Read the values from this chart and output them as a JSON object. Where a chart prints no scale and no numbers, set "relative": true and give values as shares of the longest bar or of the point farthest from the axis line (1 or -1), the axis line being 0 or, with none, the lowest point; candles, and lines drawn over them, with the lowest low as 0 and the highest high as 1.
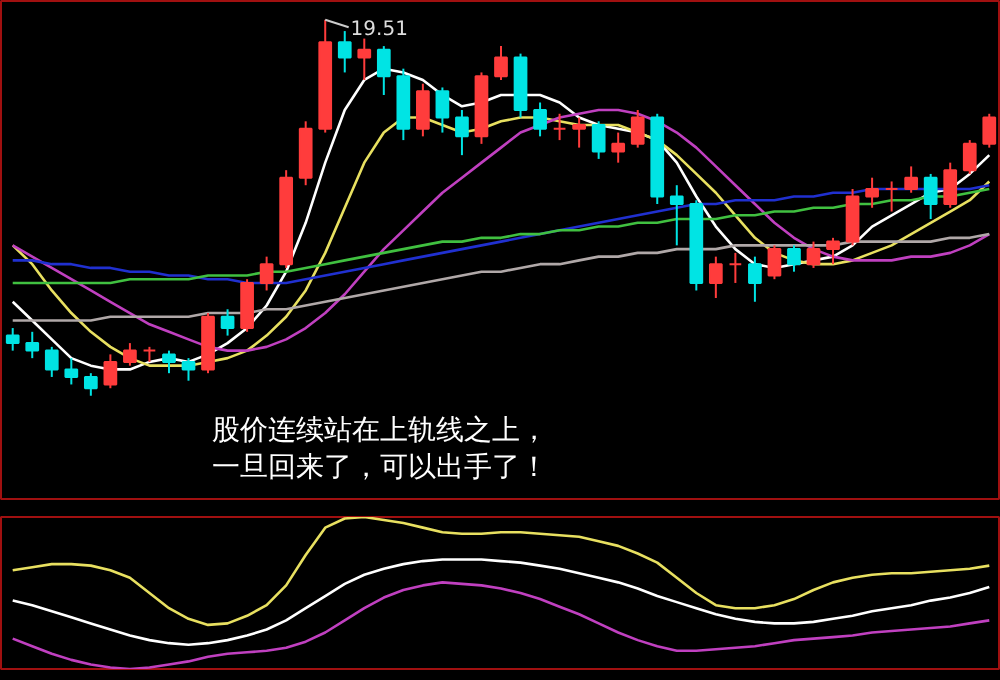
{
  "chart_data": [
    {
      "type": "candlestick",
      "relative": true,
      "categories": [
        null,
        null,
        null,
        null,
        null,
        null,
        null,
        null,
        null,
        null,
        null,
        null,
        null,
        null,
        null,
        null,
        null,
        null,
        null,
        null,
        null,
        null,
        null,
        null,
        null,
        null,
        null,
        null,
        null,
        null,
        null,
        null,
        null,
        null,
        null,
        null,
        null,
        null,
        null,
        null,
        null,
        null,
        null,
        null,
        null,
        null,
        null,
        null,
        null,
        null,
        null
      ],
      "ohlc": [
        [
          0.16,
          0.18,
          0.12,
          0.14
        ],
        [
          0.14,
          0.17,
          0.1,
          0.12
        ],
        [
          0.12,
          0.13,
          0.05,
          0.07
        ],
        [
          0.07,
          0.1,
          0.03,
          0.05
        ],
        [
          0.05,
          0.06,
          0.0,
          0.02
        ],
        [
          0.03,
          0.11,
          0.02,
          0.09
        ],
        [
          0.09,
          0.14,
          0.08,
          0.12
        ],
        [
          0.12,
          0.13,
          0.09,
          0.12
        ],
        [
          0.11,
          0.12,
          0.06,
          0.09
        ],
        [
          0.09,
          0.1,
          0.04,
          0.07
        ],
        [
          0.07,
          0.22,
          0.06,
          0.21
        ],
        [
          0.21,
          0.23,
          0.16,
          0.18
        ],
        [
          0.18,
          0.31,
          0.17,
          0.3
        ],
        [
          0.3,
          0.37,
          0.28,
          0.35
        ],
        [
          0.35,
          0.6,
          0.34,
          0.58
        ],
        [
          0.58,
          0.73,
          0.56,
          0.71
        ],
        [
          0.71,
          1.0,
          0.7,
          0.94
        ],
        [
          0.94,
          0.97,
          0.86,
          0.9
        ],
        [
          0.9,
          0.95,
          0.84,
          0.92
        ],
        [
          0.92,
          0.93,
          0.8,
          0.85
        ],
        [
          0.85,
          0.87,
          0.68,
          0.71
        ],
        [
          0.71,
          0.83,
          0.69,
          0.81
        ],
        [
          0.81,
          0.82,
          0.7,
          0.74
        ],
        [
          0.74,
          0.76,
          0.64,
          0.69
        ],
        [
          0.69,
          0.86,
          0.67,
          0.85
        ],
        [
          0.85,
          0.93,
          0.84,
          0.9
        ],
        [
          0.9,
          0.91,
          0.74,
          0.76
        ],
        [
          0.76,
          0.78,
          0.69,
          0.71
        ],
        [
          0.71,
          0.75,
          0.68,
          0.71
        ],
        [
          0.71,
          0.74,
          0.66,
          0.72
        ],
        [
          0.72,
          0.73,
          0.63,
          0.65
        ],
        [
          0.65,
          0.7,
          0.62,
          0.67
        ],
        [
          0.67,
          0.76,
          0.66,
          0.74
        ],
        [
          0.74,
          0.75,
          0.51,
          0.53
        ],
        [
          0.53,
          0.56,
          0.4,
          0.51
        ],
        [
          0.51,
          0.52,
          0.28,
          0.3
        ],
        [
          0.3,
          0.37,
          0.26,
          0.35
        ],
        [
          0.35,
          0.38,
          0.3,
          0.35
        ],
        [
          0.35,
          0.37,
          0.25,
          0.3
        ],
        [
          0.32,
          0.4,
          0.31,
          0.39
        ],
        [
          0.39,
          0.4,
          0.33,
          0.35
        ],
        [
          0.35,
          0.41,
          0.34,
          0.39
        ],
        [
          0.39,
          0.42,
          0.35,
          0.41
        ],
        [
          0.41,
          0.55,
          0.4,
          0.53
        ],
        [
          0.53,
          0.58,
          0.5,
          0.55
        ],
        [
          0.55,
          0.57,
          0.49,
          0.55
        ],
        [
          0.55,
          0.61,
          0.54,
          0.58
        ],
        [
          0.58,
          0.59,
          0.47,
          0.51
        ],
        [
          0.51,
          0.62,
          0.5,
          0.6
        ],
        [
          0.6,
          0.68,
          0.59,
          0.67
        ],
        [
          0.67,
          0.75,
          0.66,
          0.74
        ]
      ],
      "colors": [
        "#00e4e4",
        "#00e4e4",
        "#00e4e4",
        "#00e4e4",
        "#00e4e4",
        "#ff3c3c",
        "#ff3c3c",
        "#ff3c3c",
        "#00e4e4",
        "#00e4e4",
        "#ff3c3c",
        "#00e4e4",
        "#ff3c3c",
        "#ff3c3c",
        "#ff3c3c",
        "#ff3c3c",
        "#ff3c3c",
        "#00e4e4",
        "#ff3c3c",
        "#00e4e4",
        "#00e4e4",
        "#ff3c3c",
        "#00e4e4",
        "#00e4e4",
        "#ff3c3c",
        "#ff3c3c",
        "#00e4e4",
        "#00e4e4",
        "#ff3c3c",
        "#ff3c3c",
        "#00e4e4",
        "#ff3c3c",
        "#ff3c3c",
        "#00e4e4",
        "#00e4e4",
        "#00e4e4",
        "#ff3c3c",
        "#ff3c3c",
        "#00e4e4",
        "#ff3c3c",
        "#00e4e4",
        "#ff3c3c",
        "#ff3c3c",
        "#ff3c3c",
        "#ff3c3c",
        "#ff3c3c",
        "#ff3c3c",
        "#00e4e4",
        "#ff3c3c",
        "#ff3c3c",
        "#ff3c3c"
      ],
      "series": [
        {
          "type": "line",
          "color": "#ffffff",
          "values": [
            0.25,
            0.2,
            0.15,
            0.1,
            0.08,
            0.07,
            0.07,
            0.09,
            0.1,
            0.09,
            0.11,
            0.14,
            0.18,
            0.24,
            0.33,
            0.46,
            0.62,
            0.76,
            0.84,
            0.87,
            0.86,
            0.84,
            0.8,
            0.77,
            0.78,
            0.8,
            0.8,
            0.8,
            0.78,
            0.74,
            0.72,
            0.71,
            0.7,
            0.68,
            0.62,
            0.53,
            0.45,
            0.39,
            0.35,
            0.34,
            0.35,
            0.36,
            0.37,
            0.4,
            0.45,
            0.48,
            0.51,
            0.54,
            0.55,
            0.59,
            0.64
          ]
        },
        {
          "type": "line",
          "color": "#e8e060",
          "values": [
            0.4,
            0.35,
            0.28,
            0.22,
            0.17,
            0.13,
            0.1,
            0.08,
            0.08,
            0.08,
            0.09,
            0.1,
            0.12,
            0.16,
            0.21,
            0.28,
            0.38,
            0.5,
            0.62,
            0.7,
            0.74,
            0.74,
            0.72,
            0.7,
            0.71,
            0.73,
            0.74,
            0.74,
            0.73,
            0.72,
            0.72,
            0.72,
            0.7,
            0.68,
            0.64,
            0.59,
            0.54,
            0.48,
            0.42,
            0.38,
            0.36,
            0.35,
            0.35,
            0.36,
            0.38,
            0.4,
            0.43,
            0.46,
            0.49,
            0.52,
            0.57
          ]
        },
        {
          "type": "line",
          "color": "#c040c0",
          "values": [
            0.4,
            0.37,
            0.34,
            0.31,
            0.28,
            0.25,
            0.22,
            0.19,
            0.17,
            0.15,
            0.13,
            0.12,
            0.12,
            0.13,
            0.15,
            0.18,
            0.22,
            0.27,
            0.33,
            0.39,
            0.44,
            0.49,
            0.54,
            0.58,
            0.62,
            0.66,
            0.7,
            0.72,
            0.74,
            0.75,
            0.76,
            0.76,
            0.75,
            0.73,
            0.7,
            0.66,
            0.61,
            0.56,
            0.51,
            0.46,
            0.42,
            0.39,
            0.37,
            0.36,
            0.36,
            0.36,
            0.37,
            0.37,
            0.38,
            0.4,
            0.43
          ]
        },
        {
          "type": "line",
          "color": "#2030d0",
          "values": [
            0.36,
            0.36,
            0.35,
            0.35,
            0.34,
            0.34,
            0.33,
            0.33,
            0.32,
            0.32,
            0.31,
            0.31,
            0.3,
            0.3,
            0.3,
            0.31,
            0.32,
            0.33,
            0.34,
            0.35,
            0.36,
            0.37,
            0.38,
            0.39,
            0.4,
            0.41,
            0.42,
            0.43,
            0.44,
            0.45,
            0.46,
            0.47,
            0.48,
            0.49,
            0.5,
            0.51,
            0.51,
            0.52,
            0.52,
            0.52,
            0.53,
            0.53,
            0.54,
            0.54,
            0.55,
            0.55,
            0.55,
            0.55,
            0.55,
            0.55,
            0.56
          ]
        },
        {
          "type": "line",
          "color": "#40c040",
          "values": [
            0.3,
            0.3,
            0.3,
            0.3,
            0.3,
            0.3,
            0.31,
            0.31,
            0.31,
            0.31,
            0.32,
            0.32,
            0.32,
            0.33,
            0.33,
            0.34,
            0.35,
            0.36,
            0.37,
            0.38,
            0.39,
            0.4,
            0.41,
            0.41,
            0.42,
            0.42,
            0.43,
            0.43,
            0.44,
            0.44,
            0.45,
            0.45,
            0.46,
            0.46,
            0.47,
            0.47,
            0.47,
            0.48,
            0.48,
            0.49,
            0.49,
            0.5,
            0.5,
            0.51,
            0.51,
            0.52,
            0.52,
            0.53,
            0.53,
            0.54,
            0.55
          ]
        },
        {
          "type": "line",
          "color": "#b0a8a8",
          "values": [
            0.2,
            0.2,
            0.2,
            0.2,
            0.2,
            0.21,
            0.21,
            0.21,
            0.21,
            0.21,
            0.22,
            0.22,
            0.22,
            0.23,
            0.23,
            0.24,
            0.25,
            0.26,
            0.27,
            0.28,
            0.29,
            0.3,
            0.31,
            0.32,
            0.33,
            0.33,
            0.34,
            0.35,
            0.35,
            0.36,
            0.37,
            0.37,
            0.38,
            0.38,
            0.39,
            0.39,
            0.39,
            0.4,
            0.4,
            0.4,
            0.4,
            0.4,
            0.4,
            0.41,
            0.41,
            0.41,
            0.41,
            0.41,
            0.42,
            0.42,
            0.43
          ]
        }
      ],
      "annotations": [
        "19.51",
        "股价连续站在上轨线之上，",
        "一旦回来了，可以出手了！"
      ]
    },
    {
      "type": "line",
      "relative": true,
      "categories": [
        null,
        null,
        null,
        null,
        null,
        null,
        null,
        null,
        null,
        null,
        null,
        null,
        null,
        null,
        null,
        null,
        null,
        null,
        null,
        null,
        null,
        null,
        null,
        null,
        null,
        null,
        null,
        null,
        null,
        null,
        null,
        null,
        null,
        null,
        null,
        null,
        null,
        null,
        null,
        null,
        null,
        null,
        null,
        null,
        null,
        null,
        null,
        null,
        null,
        null,
        null
      ],
      "series": [
        {
          "color": "#e8e060",
          "values": [
            0.65,
            0.67,
            0.69,
            0.69,
            0.68,
            0.65,
            0.6,
            0.5,
            0.4,
            0.33,
            0.29,
            0.3,
            0.35,
            0.42,
            0.55,
            0.75,
            0.93,
            0.99,
            1.0,
            0.98,
            0.96,
            0.93,
            0.9,
            0.89,
            0.89,
            0.9,
            0.9,
            0.89,
            0.88,
            0.87,
            0.84,
            0.81,
            0.76,
            0.7,
            0.6,
            0.5,
            0.42,
            0.4,
            0.4,
            0.42,
            0.46,
            0.52,
            0.57,
            0.6,
            0.62,
            0.63,
            0.63,
            0.64,
            0.65,
            0.66,
            0.68
          ]
        },
        {
          "color": "#ffffff",
          "values": [
            0.45,
            0.42,
            0.38,
            0.34,
            0.3,
            0.26,
            0.22,
            0.19,
            0.17,
            0.16,
            0.17,
            0.19,
            0.22,
            0.26,
            0.32,
            0.4,
            0.48,
            0.56,
            0.62,
            0.66,
            0.69,
            0.71,
            0.72,
            0.72,
            0.72,
            0.71,
            0.7,
            0.68,
            0.66,
            0.63,
            0.6,
            0.57,
            0.53,
            0.48,
            0.44,
            0.4,
            0.36,
            0.33,
            0.31,
            0.3,
            0.3,
            0.31,
            0.33,
            0.35,
            0.38,
            0.4,
            0.42,
            0.45,
            0.47,
            0.5,
            0.54
          ]
        },
        {
          "color": "#c040c0",
          "values": [
            0.2,
            0.15,
            0.1,
            0.06,
            0.03,
            0.01,
            0.0,
            0.01,
            0.03,
            0.05,
            0.08,
            0.1,
            0.11,
            0.12,
            0.14,
            0.18,
            0.24,
            0.32,
            0.4,
            0.47,
            0.52,
            0.55,
            0.57,
            0.56,
            0.55,
            0.53,
            0.5,
            0.46,
            0.41,
            0.36,
            0.3,
            0.24,
            0.19,
            0.15,
            0.12,
            0.12,
            0.13,
            0.14,
            0.15,
            0.17,
            0.19,
            0.2,
            0.21,
            0.22,
            0.24,
            0.25,
            0.26,
            0.27,
            0.28,
            0.3,
            0.32
          ]
        }
      ]
    }
  ]
}
